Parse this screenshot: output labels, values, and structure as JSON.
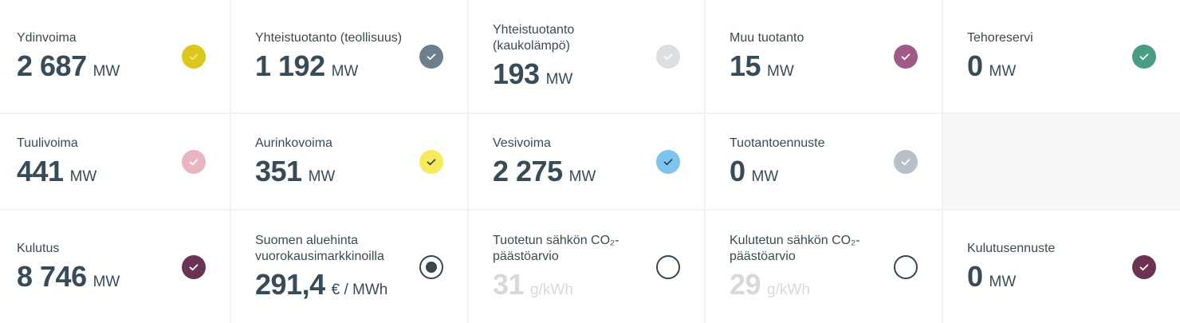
{
  "cards": [
    {
      "label": "Ydinvoima",
      "value": "2 687",
      "unit": "MW",
      "icon": "check-circle-icon",
      "color": "#dcc81c",
      "check": "#f5ea7a"
    },
    {
      "label": "Yhteistuotanto (teollisuus)",
      "value": "1 192",
      "unit": "MW",
      "icon": "check-circle-icon",
      "color": "#6c7f8c",
      "check": "#ffffff"
    },
    {
      "label": "Yhteistuotanto (kaukolämpö)",
      "value": "193",
      "unit": "MW",
      "icon": "check-circle-icon",
      "color": "#dcdfe2",
      "check": "#ffffff"
    },
    {
      "label": "Muu tuotanto",
      "value": "15",
      "unit": "MW",
      "icon": "check-circle-icon",
      "color": "#a05a85",
      "check": "#ffffff"
    },
    {
      "label": "Tehoreservi",
      "value": "0",
      "unit": "MW",
      "icon": "check-circle-icon",
      "color": "#4a9c84",
      "check": "#ffffff"
    },
    {
      "label": "Tuulivoima",
      "value": "441",
      "unit": "MW",
      "icon": "check-circle-icon",
      "color": "#e8b6c0",
      "check": "#ffffff"
    },
    {
      "label": "Aurinkovoima",
      "value": "351",
      "unit": "MW",
      "icon": "check-circle-icon",
      "color": "#f7ea5c",
      "check": "#37474f"
    },
    {
      "label": "Vesivoima",
      "value": "2 275",
      "unit": "MW",
      "icon": "check-circle-icon",
      "color": "#7fc4f0",
      "check": "#37474f"
    },
    {
      "label": "Tuotantoennuste",
      "value": "0",
      "unit": "MW",
      "icon": "check-circle-icon",
      "color": "#b6c0c8",
      "check": "#ffffff"
    },
    null,
    {
      "label": "Kulutus",
      "value": "8 746",
      "unit": "MW",
      "icon": "check-circle-icon",
      "color": "#6a3353",
      "check": "#ffffff"
    },
    {
      "label": "Suomen aluehinta vuorokausimarkkinoilla",
      "value": "291,4",
      "unit": "€ / MWh",
      "icon": "radio-selected-icon",
      "selected": true
    },
    {
      "label": "Tuotetun sähkön CO₂-päästöarvio",
      "value": "31",
      "unit": "g/kWh",
      "icon": "radio-icon",
      "selected": false,
      "dim": true
    },
    {
      "label": "Kulutetun sähkön CO₂-päästöarvio",
      "value": "29",
      "unit": "g/kWh",
      "icon": "radio-icon",
      "selected": false,
      "dim": true
    },
    {
      "label": "Kulutusennuste",
      "value": "0",
      "unit": "MW",
      "icon": "check-circle-icon",
      "color": "#6a3353",
      "check": "#ffffff"
    }
  ]
}
